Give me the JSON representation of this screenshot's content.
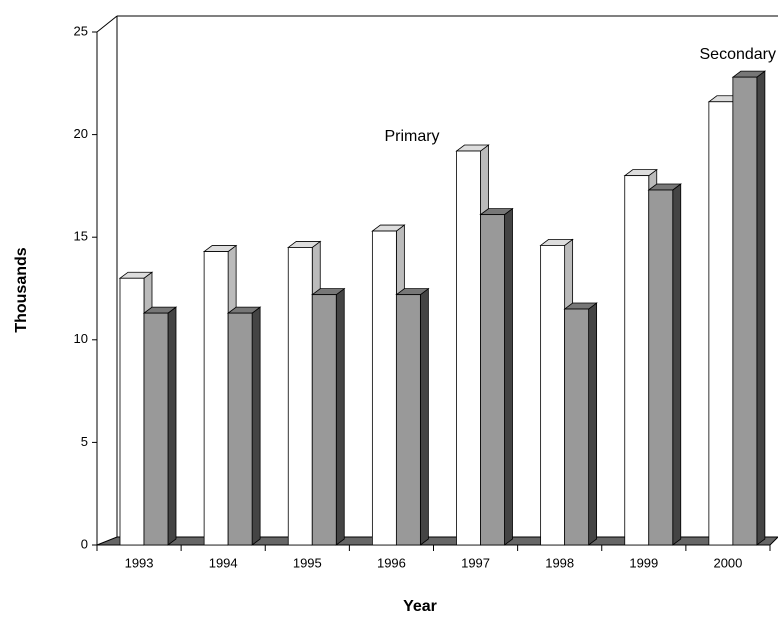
{
  "chart_data": {
    "type": "bar3d",
    "y_label": "Thousands",
    "x_label": "Year",
    "categories": [
      "1993",
      "1994",
      "1995",
      "1996",
      "1997",
      "1998",
      "1999",
      "2000"
    ],
    "series": [
      {
        "name": "Primary",
        "color": "#ffffff",
        "values": [
          13.0,
          14.3,
          14.5,
          15.3,
          19.2,
          14.6,
          18.0,
          21.6
        ]
      },
      {
        "name": "Secondary",
        "color": "#999999",
        "values": [
          11.3,
          11.3,
          12.2,
          12.2,
          16.1,
          11.5,
          17.3,
          22.8
        ]
      }
    ],
    "ylim": [
      0,
      25
    ],
    "yticks": [
      0,
      5,
      10,
      15,
      20,
      25
    ]
  }
}
